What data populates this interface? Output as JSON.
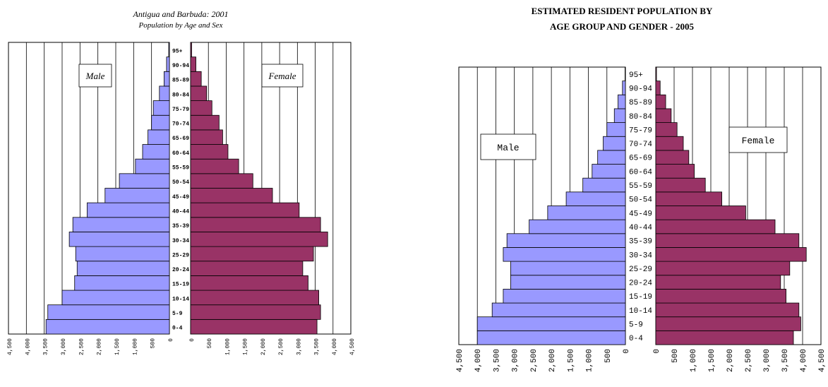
{
  "colors": {
    "male": "#9999ff",
    "female": "#993366",
    "grid": "#000000",
    "background": "#ffffff"
  },
  "chart_data": [
    {
      "type": "bar",
      "orientation": "horizontal-pyramid",
      "title": "Antigua and Barbuda: 2001",
      "subtitle": "Population by Age and Sex",
      "categories": [
        "0-4",
        "5-9",
        "10-14",
        "15-19",
        "20-24",
        "25-29",
        "30-34",
        "35-39",
        "40-44",
        "45-49",
        "50-54",
        "55-59",
        "60-64",
        "65-69",
        "70-74",
        "75-79",
        "80-84",
        "85-89",
        "90-94",
        "95+"
      ],
      "series": [
        {
          "name": "Male",
          "values": [
            3450,
            3400,
            3000,
            2650,
            2580,
            2620,
            2800,
            2700,
            2300,
            1800,
            1400,
            950,
            750,
            600,
            500,
            450,
            280,
            150,
            80,
            20
          ]
        },
        {
          "name": "Female",
          "values": [
            3550,
            3650,
            3600,
            3300,
            3150,
            3450,
            3850,
            3650,
            3050,
            2300,
            1750,
            1350,
            1050,
            900,
            800,
            600,
            450,
            300,
            150,
            30
          ]
        }
      ],
      "xlim": [
        0,
        4500
      ],
      "ticks": [
        "0",
        "500",
        "1,000",
        "1,500",
        "2,000",
        "2,500",
        "3,000",
        "3,500",
        "4,000",
        "4,500"
      ],
      "grid": true
    },
    {
      "type": "bar",
      "orientation": "horizontal-pyramid",
      "title": "ESTIMATED RESIDENT POPULATION BY",
      "subtitle": "AGE GROUP AND GENDER  -  2005",
      "categories": [
        "0-4",
        "5-9",
        "10-14",
        "15-19",
        "20-24",
        "25-29",
        "30-34",
        "35-39",
        "40-44",
        "45-49",
        "50-54",
        "55-59",
        "60-64",
        "65-69",
        "70-74",
        "75-79",
        "80-84",
        "85-89",
        "90-94",
        "95+"
      ],
      "series": [
        {
          "name": "Male",
          "values": [
            4000,
            4000,
            3600,
            3300,
            3100,
            3100,
            3300,
            3200,
            2600,
            2100,
            1600,
            1150,
            900,
            750,
            600,
            500,
            300,
            200,
            80,
            10
          ]
        },
        {
          "name": "Female",
          "values": [
            3750,
            3950,
            3900,
            3550,
            3400,
            3650,
            4100,
            3900,
            3250,
            2450,
            1800,
            1350,
            1050,
            900,
            750,
            580,
            420,
            270,
            120,
            20
          ]
        }
      ],
      "xlim": [
        0,
        4500
      ],
      "ticks": [
        "0",
        "500",
        "1,000",
        "1,500",
        "2,000",
        "2,500",
        "3,000",
        "3,500",
        "4,000",
        "4,500"
      ],
      "grid": true
    }
  ],
  "legend": [
    {
      "male_label": "Male",
      "female_label": "Female"
    },
    {
      "male_label": "Male",
      "female_label": "Female"
    }
  ]
}
